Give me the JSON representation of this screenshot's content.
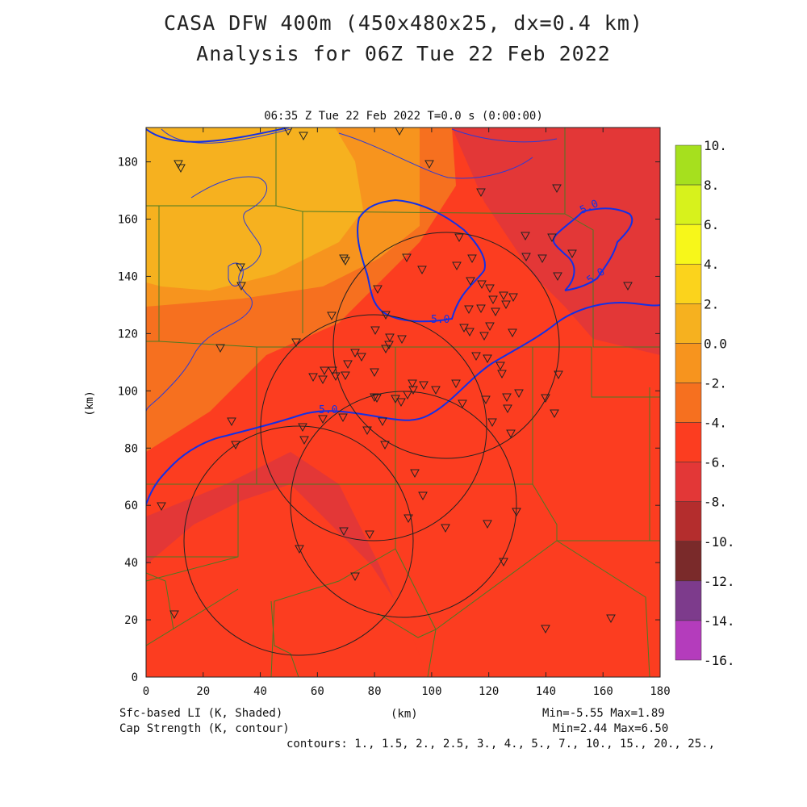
{
  "header": {
    "title_line1": "CASA DFW 400m (450x480x25, dx=0.4 km)",
    "title_line2": "Analysis for 06Z Tue 22 Feb 2022",
    "valid_time": "06:35 Z Tue 22 Feb 2022    T=0.0 s (0:00:00)"
  },
  "axes": {
    "x_label": "(km)",
    "y_label": "(km)",
    "x_range": [
      0,
      180
    ],
    "y_range": [
      0,
      192
    ],
    "x_ticks": [
      "0",
      "20",
      "40",
      "60",
      "80",
      "100",
      "120",
      "140",
      "160",
      "180"
    ],
    "y_ticks": [
      "0",
      "20",
      "40",
      "60",
      "80",
      "100",
      "120",
      "140",
      "160",
      "180"
    ]
  },
  "colorbar": {
    "labels": [
      "10.",
      "8.",
      "6.",
      "4.",
      "2.",
      "0.0",
      "-2.",
      "-4.",
      "-6.",
      "-8.",
      "-10.",
      "-12.",
      "-14.",
      "-16."
    ],
    "colors": [
      "#a6e01e",
      "#d7f21c",
      "#f7f71a",
      "#fbd31c",
      "#f6b11f",
      "#f7941e",
      "#f6701f",
      "#fc3d20",
      "#e33737",
      "#b42d2d",
      "#7a2a2a",
      "#7d3b8c",
      "#b43cbc",
      "#d94be0"
    ]
  },
  "contours": {
    "cap_label": "5.0"
  },
  "footer": {
    "left_line1": "Sfc-based LI (K, Shaded)",
    "left_line2": "Cap Strength (K, contour)",
    "center": "(km)",
    "right_line1": "Min=-5.55 Max=1.89",
    "right_line2": "Min=2.44 Max=6.50",
    "contours": "contours: 1., 1.5, 2., 2.5, 3., 4., 5., 7., 10., 15., 20., 25.,"
  }
}
